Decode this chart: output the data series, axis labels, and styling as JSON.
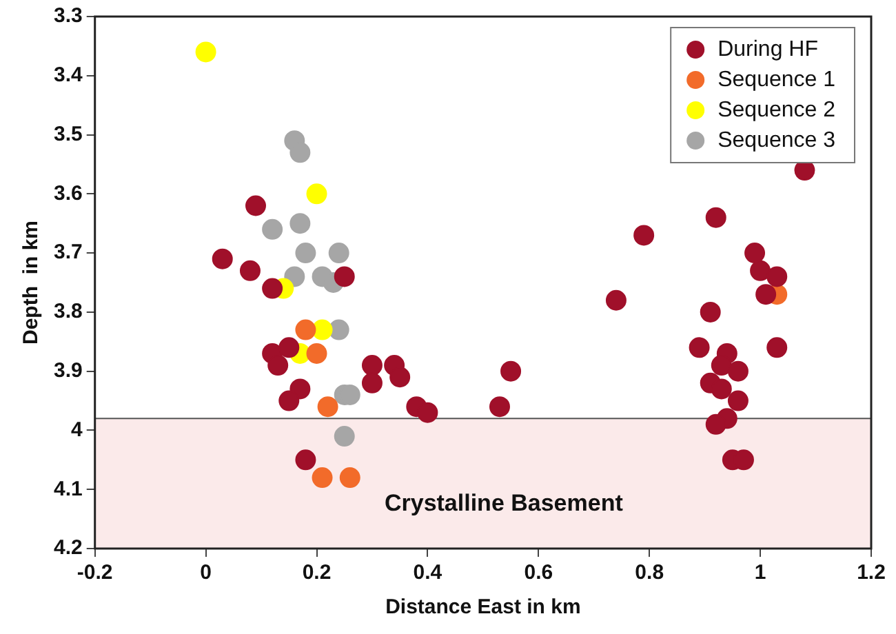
{
  "chart_data": {
    "type": "scatter",
    "xlabel": "Distance East in km",
    "ylabel": "Depth  in km",
    "xlim": [
      -0.2,
      1.2
    ],
    "xticks": [
      -0.2,
      0,
      0.2,
      0.4,
      0.6,
      0.8,
      1,
      1.2
    ],
    "ylim": [
      4.2,
      3.3
    ],
    "yticks": [
      3.3,
      3.4,
      3.5,
      3.6,
      3.7,
      3.8,
      3.9,
      4,
      4.1,
      4.2
    ],
    "grid": false,
    "legend": "top right",
    "marker": "circle",
    "bands": [
      {
        "axis": "y",
        "from": 3.98,
        "to": 4.2,
        "label": "Crystalline Basement",
        "color": "#fbeaea"
      }
    ],
    "ref_lines": [
      {
        "axis": "y",
        "value": 3.98,
        "color": "#555555"
      }
    ],
    "series": [
      {
        "name": "During HF",
        "color": "#a0102a",
        "x": [
          0.09,
          0.03,
          0.08,
          0.25,
          0.12,
          0.12,
          0.15,
          0.13,
          0.3,
          0.3,
          0.34,
          0.35,
          0.17,
          0.15,
          0.38,
          0.4,
          0.53,
          0.55,
          0.18,
          1.08,
          0.92,
          0.79,
          0.99,
          1.0,
          1.03,
          1.01,
          0.74,
          0.91,
          0.89,
          1.03,
          0.94,
          0.93,
          0.96,
          0.91,
          0.93,
          0.96,
          0.94,
          0.92,
          0.95,
          0.97
        ],
        "values": [
          3.62,
          3.71,
          3.73,
          3.74,
          3.76,
          3.87,
          3.86,
          3.89,
          3.89,
          3.92,
          3.89,
          3.91,
          3.93,
          3.95,
          3.96,
          3.97,
          3.96,
          3.9,
          4.05,
          3.56,
          3.64,
          3.67,
          3.7,
          3.73,
          3.74,
          3.77,
          3.78,
          3.8,
          3.86,
          3.86,
          3.87,
          3.89,
          3.9,
          3.92,
          3.93,
          3.95,
          3.98,
          3.99,
          4.05,
          4.05
        ]
      },
      {
        "name": "Sequence 1",
        "color": "#f26b2a",
        "x": [
          0.18,
          0.2,
          0.22,
          0.21,
          0.26,
          1.03
        ],
        "values": [
          3.83,
          3.87,
          3.96,
          4.08,
          4.08,
          3.77
        ]
      },
      {
        "name": "Sequence 2",
        "color": "#ffff00",
        "x": [
          0.0,
          0.2,
          0.14,
          0.21,
          0.17
        ],
        "values": [
          3.36,
          3.6,
          3.76,
          3.83,
          3.87
        ]
      },
      {
        "name": "Sequence 3",
        "color": "#a6a6a6",
        "x": [
          0.16,
          0.17,
          0.12,
          0.17,
          0.18,
          0.24,
          0.16,
          0.21,
          0.23,
          0.24,
          0.25,
          0.26,
          0.25
        ],
        "values": [
          3.51,
          3.53,
          3.66,
          3.65,
          3.7,
          3.7,
          3.74,
          3.74,
          3.75,
          3.83,
          3.94,
          3.94,
          4.01
        ]
      }
    ]
  }
}
